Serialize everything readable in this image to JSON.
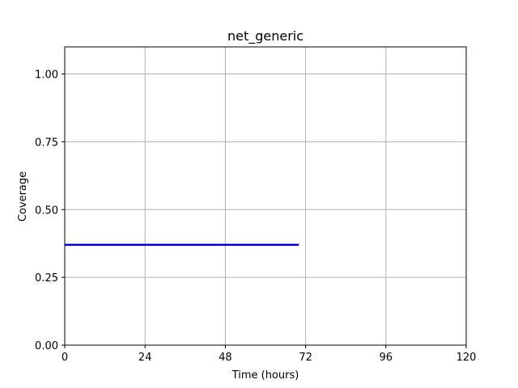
{
  "chart_data": {
    "type": "line",
    "title": "net_generic",
    "xlabel": "Time (hours)",
    "ylabel": "Coverage",
    "xlim": [
      0,
      120
    ],
    "ylim": [
      0,
      1.1
    ],
    "xticks": [
      0,
      24,
      48,
      72,
      96,
      120
    ],
    "xtick_labels": [
      "0",
      "24",
      "48",
      "72",
      "96",
      "120"
    ],
    "yticks": [
      0,
      0.25,
      0.5,
      0.75,
      1.0
    ],
    "ytick_labels": [
      "0.00",
      "0.25",
      "0.50",
      "0.75",
      "1.00"
    ],
    "grid": true,
    "series": [
      {
        "color": "#0000cc",
        "x": [
          0,
          70
        ],
        "y": [
          0.37,
          0.37
        ]
      }
    ]
  }
}
